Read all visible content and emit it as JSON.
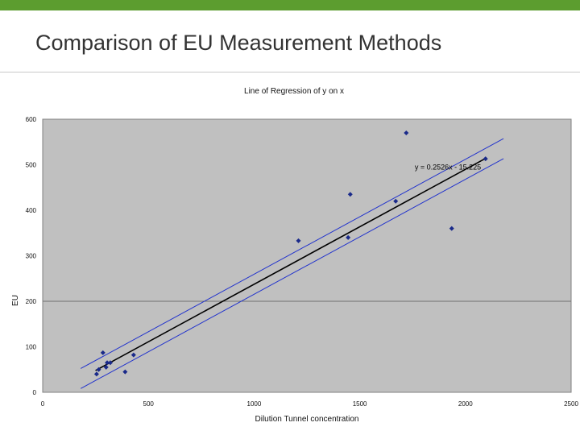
{
  "slide": {
    "title": "Comparison of EU Measurement Methods",
    "accent_color": "#5c9d2f"
  },
  "chart_data": {
    "type": "scatter",
    "title": "Line of Regression of y on x",
    "xlabel": "Dilution Tunnel concentration",
    "ylabel": "EU",
    "xlim": [
      0,
      2500
    ],
    "ylim": [
      0,
      600
    ],
    "x_ticks": [
      0,
      500,
      1000,
      1500,
      2000,
      2500
    ],
    "y_ticks": [
      0,
      100,
      200,
      300,
      400,
      500,
      600
    ],
    "grid": "horizontal line at y=200",
    "plot_background": "#c0c0c0",
    "point_color": "#1a2a8a",
    "series": [
      {
        "points": [
          [
            255,
            40
          ],
          [
            265,
            50
          ],
          [
            285,
            87
          ],
          [
            300,
            55
          ],
          [
            305,
            65
          ],
          [
            320,
            65
          ],
          [
            390,
            45
          ],
          [
            430,
            82
          ],
          [
            1210,
            333
          ],
          [
            1445,
            340
          ],
          [
            1455,
            435
          ],
          [
            1670,
            420
          ],
          [
            1720,
            570
          ],
          [
            1935,
            360
          ],
          [
            2095,
            513
          ]
        ]
      }
    ],
    "regression": {
      "equation": "y = 0.2526x - 15.225",
      "slope": 0.2526,
      "intercept": -15.225,
      "x_range": [
        250,
        2100
      ],
      "color": "#000000"
    },
    "confidence_bands": {
      "offset": 22,
      "x_range": [
        180,
        2180
      ],
      "color": "#2233cc"
    }
  }
}
